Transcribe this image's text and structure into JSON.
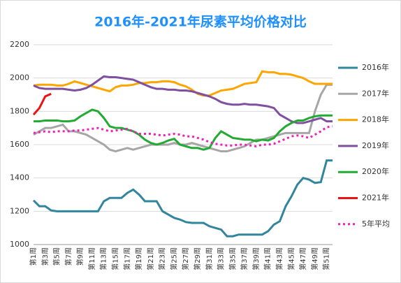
{
  "chart_data": {
    "type": "line",
    "title": "2016年-2021年尿素平均价格对比",
    "categories": [
      "第1周",
      null,
      "第3周",
      null,
      "第5周",
      null,
      "第7周",
      null,
      "第9周",
      null,
      "第11周",
      null,
      "第13周",
      null,
      "第15周",
      null,
      "第17周",
      null,
      "第19周",
      null,
      "第21周",
      null,
      "第23周",
      null,
      "第25周",
      null,
      "第27周",
      null,
      "第29周",
      null,
      "第31周",
      null,
      "第33周",
      null,
      "第35周",
      null,
      "第37周",
      null,
      "第39周",
      null,
      "第41周",
      null,
      "第43周",
      null,
      "第45周",
      null,
      "第47周",
      null,
      "第49周",
      null,
      "第51周",
      null
    ],
    "ylim": [
      1000,
      2200
    ],
    "yticks": [
      1000,
      1200,
      1400,
      1600,
      1800,
      2000,
      2200
    ],
    "grid": true,
    "series": [
      {
        "name": "2016年",
        "color": "#31859c",
        "values": [
          1265,
          1230,
          1230,
          1205,
          1200,
          1200,
          1200,
          1200,
          1200,
          1200,
          1200,
          1200,
          1260,
          1280,
          1280,
          1280,
          1310,
          1330,
          1300,
          1260,
          1260,
          1260,
          1200,
          1180,
          1160,
          1150,
          1135,
          1130,
          1130,
          1130,
          1110,
          1100,
          1090,
          1050,
          1050,
          1060,
          1060,
          1060,
          1060,
          1060,
          1080,
          1120,
          1140,
          1230,
          1290,
          1360,
          1400,
          1390,
          1370,
          1375,
          1505,
          1505
        ]
      },
      {
        "name": "2017年",
        "color": "#a6a6a6",
        "values": [
          1660,
          1680,
          1700,
          1700,
          1710,
          1720,
          1680,
          1680,
          1670,
          1660,
          1640,
          1620,
          1600,
          1570,
          1560,
          1570,
          1580,
          1570,
          1580,
          1590,
          1600,
          1600,
          1600,
          1600,
          1610,
          1600,
          1600,
          1610,
          1600,
          1590,
          1580,
          1570,
          1560,
          1560,
          1570,
          1580,
          1590,
          1610,
          1630,
          1630,
          1640,
          1650,
          1660,
          1670,
          1670,
          1670,
          1670,
          1670,
          1800,
          1900,
          1960,
          1960
        ]
      },
      {
        "name": "2018年",
        "color": "#ffa500",
        "values": [
          1955,
          1960,
          1960,
          1960,
          1955,
          1955,
          1965,
          1980,
          1970,
          1960,
          1950,
          1940,
          1930,
          1920,
          1945,
          1955,
          1955,
          1960,
          1970,
          1970,
          1975,
          1975,
          1980,
          1980,
          1975,
          1960,
          1950,
          1930,
          1905,
          1895,
          1895,
          1910,
          1925,
          1930,
          1935,
          1950,
          1965,
          1970,
          1975,
          2040,
          2035,
          2035,
          2025,
          2025,
          2020,
          2010,
          2000,
          1980,
          1965,
          1965,
          1965,
          1965
        ]
      },
      {
        "name": "2019年",
        "color": "#7f4fa0",
        "values": [
          1955,
          1940,
          1935,
          1935,
          1935,
          1935,
          1930,
          1925,
          1930,
          1940,
          1960,
          1985,
          2010,
          2005,
          2005,
          2000,
          1995,
          1990,
          1975,
          1960,
          1945,
          1935,
          1935,
          1930,
          1930,
          1925,
          1925,
          1920,
          1910,
          1900,
          1890,
          1875,
          1855,
          1845,
          1840,
          1840,
          1845,
          1840,
          1840,
          1835,
          1830,
          1820,
          1780,
          1760,
          1740,
          1730,
          1730,
          1740,
          1750,
          1760,
          1740,
          1740
        ]
      },
      {
        "name": "2020年",
        "color": "#22aa33",
        "values": [
          1740,
          1740,
          1745,
          1745,
          1745,
          1740,
          1740,
          1745,
          1770,
          1790,
          1810,
          1800,
          1760,
          1710,
          1700,
          1700,
          1690,
          1680,
          1660,
          1630,
          1610,
          1600,
          1610,
          1625,
          1635,
          1600,
          1590,
          1580,
          1580,
          1570,
          1580,
          1640,
          1680,
          1660,
          1640,
          1635,
          1630,
          1630,
          1620,
          1630,
          1625,
          1640,
          1680,
          1710,
          1730,
          1745,
          1745,
          1760,
          1770,
          1775,
          1775,
          1775
        ]
      },
      {
        "name": "2021年",
        "color": "#ee1111",
        "values": [
          1780,
          1820,
          1890,
          1905,
          null,
          null,
          null,
          null,
          null,
          null,
          null,
          null,
          null,
          null,
          null,
          null,
          null,
          null,
          null,
          null,
          null,
          null,
          null,
          null,
          null,
          null,
          null,
          null,
          null,
          null,
          null,
          null,
          null,
          null,
          null,
          null,
          null,
          null,
          null,
          null,
          null,
          null,
          null,
          null,
          null,
          null,
          null,
          null,
          null,
          null,
          null,
          null
        ]
      },
      {
        "name": "5年平均",
        "color": "#ee22bb",
        "dash": true,
        "values": [
          1670,
          1675,
          1680,
          1675,
          1680,
          1680,
          1680,
          1685,
          1685,
          1690,
          1695,
          1700,
          1690,
          1680,
          1685,
          1690,
          1695,
          1680,
          1665,
          1665,
          1665,
          1660,
          1655,
          1660,
          1665,
          1660,
          1650,
          1650,
          1640,
          1630,
          1615,
          1605,
          1600,
          1595,
          1595,
          1600,
          1600,
          1595,
          1590,
          1600,
          1600,
          1605,
          1620,
          1635,
          1650,
          1655,
          1650,
          1640,
          1660,
          1680,
          1705,
          1710
        ]
      }
    ]
  }
}
